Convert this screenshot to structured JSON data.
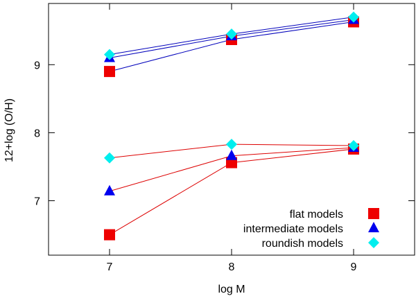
{
  "chart_data": {
    "type": "scatter",
    "title": "",
    "xlabel": "log M",
    "ylabel": "12+log (O/H)",
    "xlim": [
      6.5,
      9.5
    ],
    "ylim": [
      6.2,
      9.9
    ],
    "xticks": [
      7,
      8,
      9
    ],
    "yticks": [
      7,
      8,
      9
    ],
    "x": [
      7,
      8,
      9
    ],
    "series": [
      {
        "name": "flat models",
        "group": "high",
        "marker": "square",
        "marker_color": "#ee0000",
        "line_color": "#0000bb",
        "values": [
          8.9,
          9.37,
          9.63
        ]
      },
      {
        "name": "intermediate models",
        "group": "high",
        "marker": "triangle",
        "marker_color": "#0000ee",
        "line_color": "#0000bb",
        "values": [
          9.1,
          9.42,
          9.66
        ]
      },
      {
        "name": "roundish models",
        "group": "high",
        "marker": "diamond",
        "marker_color": "#00eeee",
        "line_color": "#0000bb",
        "values": [
          9.15,
          9.45,
          9.7
        ]
      },
      {
        "name": "flat models",
        "group": "low",
        "marker": "square",
        "marker_color": "#ee0000",
        "line_color": "#dd0000",
        "values": [
          6.5,
          7.56,
          7.76
        ]
      },
      {
        "name": "intermediate models",
        "group": "low",
        "marker": "triangle",
        "marker_color": "#0000ee",
        "line_color": "#dd0000",
        "values": [
          7.14,
          7.66,
          7.78
        ]
      },
      {
        "name": "roundish models",
        "group": "low",
        "marker": "diamond",
        "marker_color": "#00eeee",
        "line_color": "#dd0000",
        "values": [
          7.63,
          7.83,
          7.81
        ]
      }
    ],
    "legend": {
      "position": "bottom-right",
      "entries": [
        {
          "label": "flat models",
          "marker": "square",
          "color": "#ee0000"
        },
        {
          "label": "intermediate models",
          "marker": "triangle",
          "color": "#0000ee"
        },
        {
          "label": "roundish models",
          "marker": "diamond",
          "color": "#00eeee"
        }
      ]
    }
  }
}
